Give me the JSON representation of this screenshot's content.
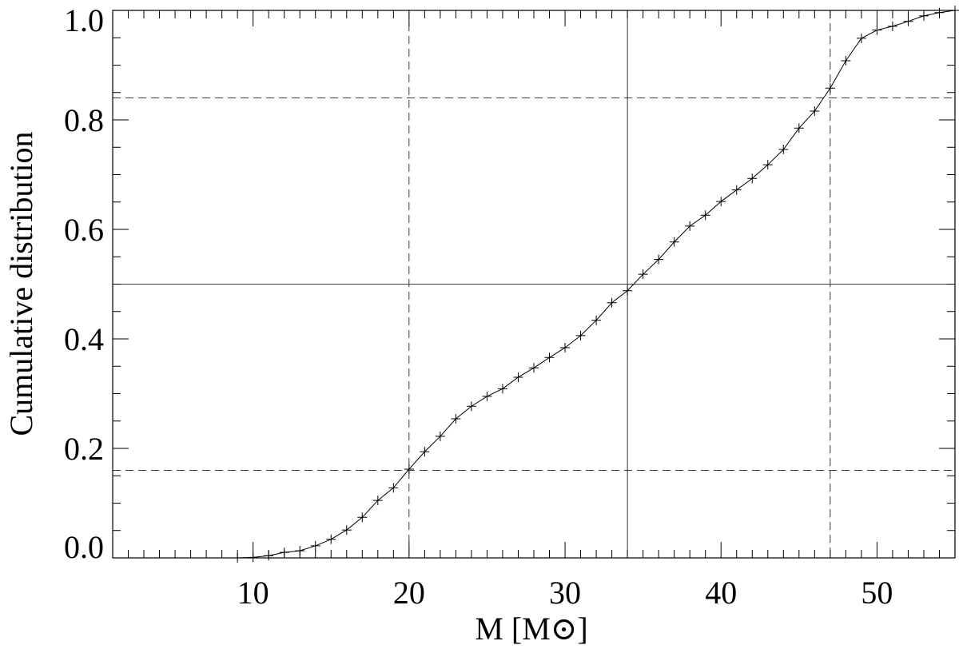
{
  "chart_data": {
    "type": "line",
    "xlabel": "M [M⊙]",
    "ylabel": "Cumulative distribution",
    "x": [
      9,
      10,
      11,
      12,
      13,
      14,
      15,
      16,
      17,
      18,
      19,
      20,
      21,
      22,
      23,
      24,
      25,
      26,
      27,
      28,
      29,
      30,
      31,
      32,
      33,
      34,
      35,
      36,
      37,
      38,
      39,
      40,
      41,
      42,
      43,
      44,
      45,
      46,
      47,
      48,
      49,
      50,
      51,
      52,
      53,
      54,
      55
    ],
    "series": [
      {
        "color": "#000000",
        "marker": "+",
        "values": [
          0.0,
          0.001,
          0.004,
          0.01,
          0.013,
          0.022,
          0.034,
          0.051,
          0.074,
          0.105,
          0.128,
          0.162,
          0.194,
          0.222,
          0.254,
          0.277,
          0.295,
          0.309,
          0.33,
          0.347,
          0.366,
          0.384,
          0.406,
          0.434,
          0.466,
          0.488,
          0.518,
          0.545,
          0.577,
          0.606,
          0.626,
          0.651,
          0.672,
          0.693,
          0.718,
          0.746,
          0.785,
          0.816,
          0.858,
          0.908,
          0.949,
          0.964,
          0.971,
          0.98,
          0.99,
          0.996,
          1.0
        ]
      }
    ],
    "xlim": [
      1,
      55
    ],
    "ylim": [
      0,
      1
    ],
    "xticks": [
      10,
      20,
      30,
      40,
      50
    ],
    "yticks": [
      {
        "value": 0,
        "label": "0.0"
      },
      0.2,
      0.4,
      0.6,
      0.8,
      {
        "value": 1,
        "label": "1.0"
      }
    ],
    "xminorticks": [
      2,
      3,
      4,
      5,
      6,
      7,
      8,
      9,
      11,
      12,
      13,
      14,
      15,
      16,
      17,
      18,
      19,
      21,
      22,
      23,
      24,
      25,
      26,
      27,
      28,
      29,
      31,
      32,
      33,
      34,
      35,
      36,
      37,
      38,
      39,
      41,
      42,
      43,
      44,
      45,
      46,
      47,
      48,
      49,
      51,
      52,
      53,
      54
    ],
    "yminorticks": [
      0.05,
      0.1,
      0.15,
      0.25,
      0.3,
      0.35,
      0.45,
      0.5,
      0.55,
      0.65,
      0.7,
      0.75,
      0.85,
      0.9,
      0.95
    ],
    "vlines": [
      {
        "value": 20,
        "style": "dashed"
      },
      {
        "value": 34,
        "style": "solid"
      },
      {
        "value": 47,
        "style": "dashed"
      }
    ],
    "hlines": [
      {
        "value": 0.16,
        "style": "dashed"
      },
      {
        "value": 0.5,
        "style": "solid"
      },
      {
        "value": 0.84,
        "style": "dashed"
      }
    ]
  }
}
